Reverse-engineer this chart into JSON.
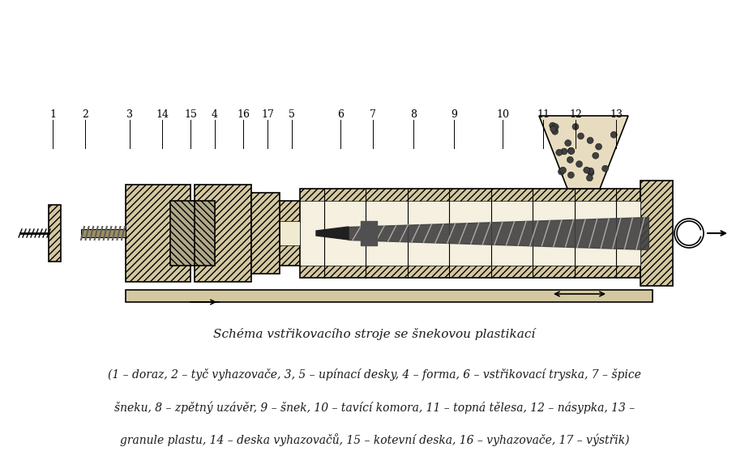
{
  "title": "Schéma vstřikovacího stroje se šnekovou plastikací",
  "caption_line1": "(1 – doraz, 2 – tyč vyhazovače, 3, 5 – upínací desky, 4 – forma, 6 – vstřikovací tryska, 7 – špice",
  "caption_line2": "šneku, 8 – zpětný uzávěr, 9 – šnek, 10 – tavící komora, 11 – topná tělesa, 12 – násypka, 13 –",
  "caption_line3": "granule plastu, 14 – deska vyhazovačů, 15 – kotevní deska, 16 – vyhazovače, 17 – výstřik)",
  "bg_color": "#ffffff",
  "text_color": "#1a1a1a",
  "fig_width": 9.24,
  "fig_height": 5.73,
  "dpi": 100
}
